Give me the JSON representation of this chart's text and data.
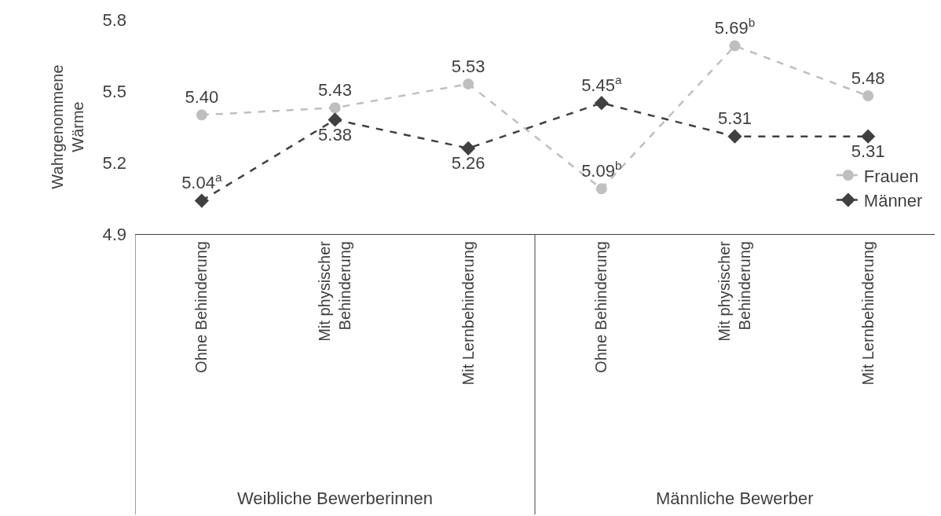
{
  "chart_data": {
    "type": "line",
    "ylabel": "Wahrgenommene Wärme",
    "categories": [
      "Ohne Behinderung",
      "Mit physischer Behinderung",
      "Mit Lernbehinderung",
      "Ohne Behinderung",
      "Mit physischer Behinderung",
      "Mit Lernbehinderung"
    ],
    "series": [
      {
        "name": "Frauen",
        "color": "#bfbfbf",
        "marker": "circle",
        "values": [
          5.4,
          5.43,
          5.53,
          5.09,
          5.69,
          5.48
        ],
        "value_labels": [
          "5.40",
          "5.43",
          "5.53",
          "5.09$^{b}$",
          "5.69$^{b}$",
          "5.48"
        ]
      },
      {
        "name": "Männer",
        "color": "#404040",
        "marker": "diamond",
        "values": [
          5.04,
          5.38,
          5.26,
          5.45,
          5.31,
          5.31
        ],
        "value_labels": [
          "5.04$^{a}$",
          "5.38",
          "5.26",
          "5.45$^{a}$",
          "5.31",
          "5.31"
        ]
      }
    ],
    "ylim": [
      4.9,
      5.8
    ],
    "yticks": [
      4.9,
      5.2,
      5.5,
      5.8
    ],
    "grid": false,
    "legend": "bottom right",
    "line_style": "dashed",
    "annotations": [
      "Weibliche Bewerberinnen",
      "Männliche Bewerber"
    ]
  }
}
